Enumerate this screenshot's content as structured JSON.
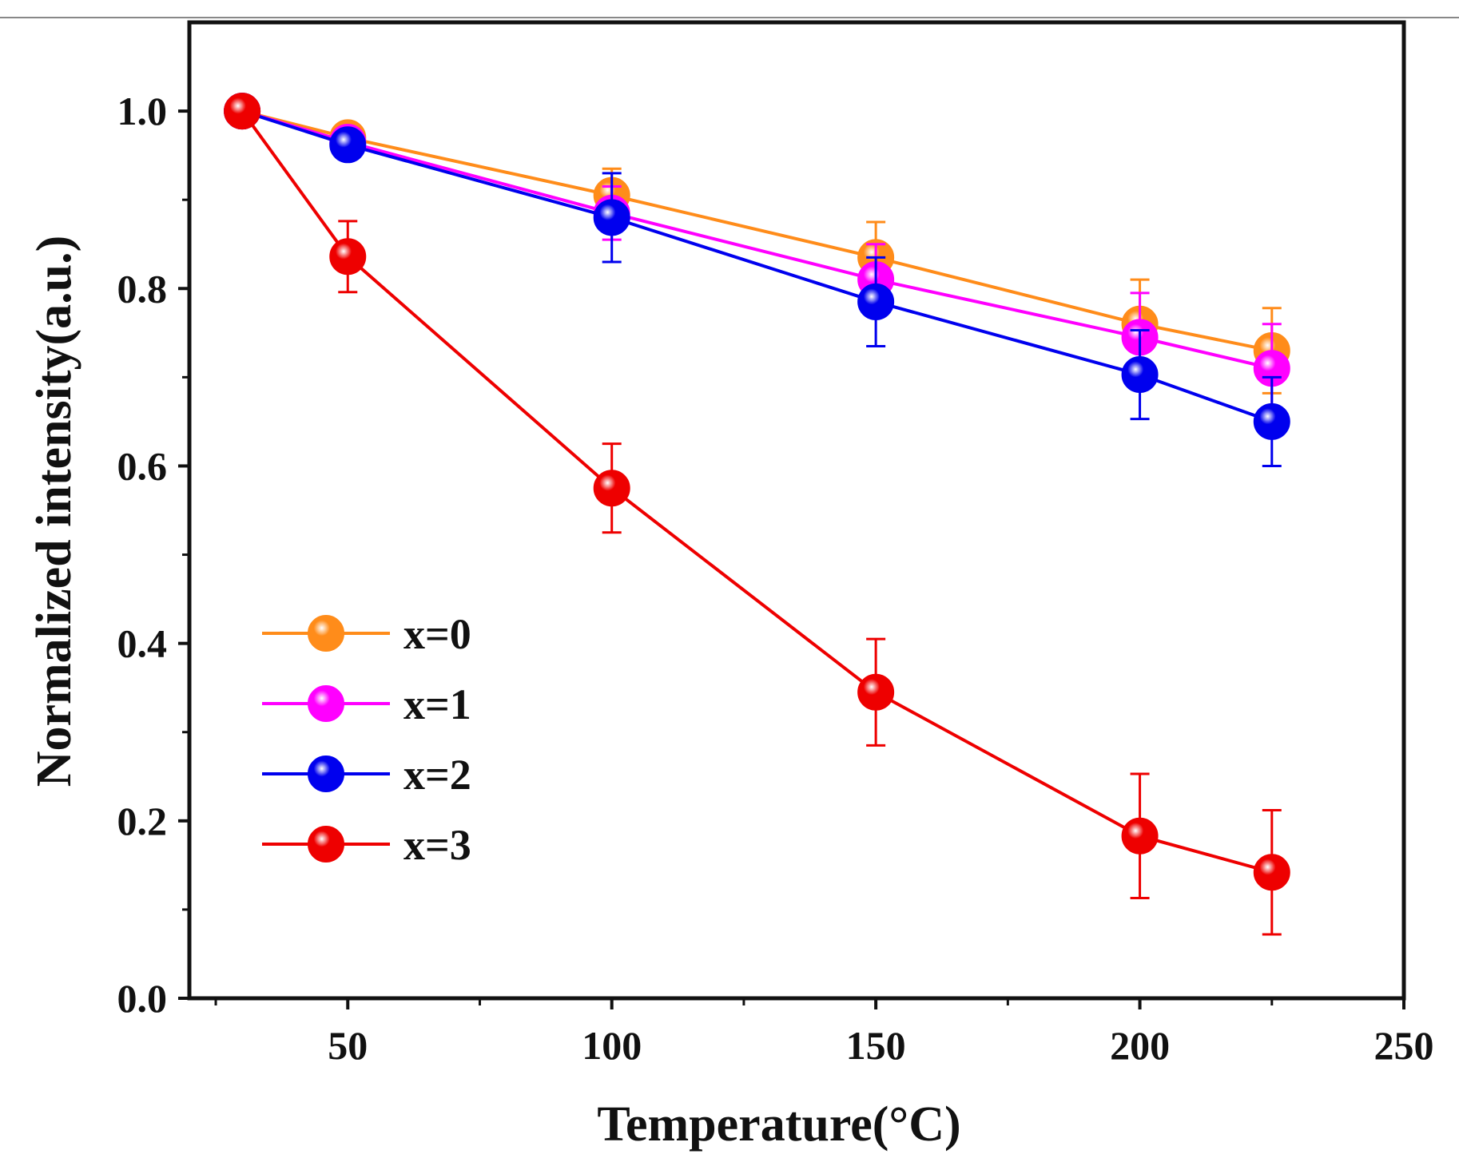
{
  "chart_data": {
    "type": "line",
    "xlabel": "Temperature(°C)",
    "ylabel": "Normalized intensity(a.u.)",
    "xlim": [
      20,
      250
    ],
    "ylim": [
      0.0,
      1.1
    ],
    "x_ticks": [
      50,
      100,
      150,
      200,
      250
    ],
    "x_tick_labels": [
      "50",
      "100",
      "150",
      "200",
      "250"
    ],
    "x_minor_ticks": [
      25,
      75,
      125,
      175,
      225
    ],
    "y_ticks": [
      0.0,
      0.2,
      0.4,
      0.6,
      0.8,
      1.0
    ],
    "y_tick_labels": [
      "0.0",
      "0.2",
      "0.4",
      "0.6",
      "0.8",
      "1.0"
    ],
    "y_minor_ticks": [
      0.1,
      0.3,
      0.5,
      0.7,
      0.9
    ],
    "x": [
      30,
      50,
      100,
      150,
      200,
      225
    ],
    "legend_position": "center-left",
    "series": [
      {
        "name": "x=0",
        "color": "#ff8c1a",
        "values": [
          1.0,
          0.97,
          0.905,
          0.835,
          0.76,
          0.73
        ],
        "errors": [
          0.0,
          0.01,
          0.03,
          0.04,
          0.05,
          0.048
        ]
      },
      {
        "name": "x=1",
        "color": "#ff00ff",
        "values": [
          1.0,
          0.965,
          0.885,
          0.81,
          0.745,
          0.71
        ],
        "errors": [
          0.0,
          0.01,
          0.03,
          0.04,
          0.05,
          0.05
        ]
      },
      {
        "name": "x=2",
        "color": "#0000ee",
        "values": [
          1.0,
          0.962,
          0.88,
          0.785,
          0.703,
          0.65
        ],
        "errors": [
          0.0,
          0.01,
          0.05,
          0.05,
          0.05,
          0.05
        ]
      },
      {
        "name": "x=3",
        "color": "#ee0000",
        "values": [
          1.0,
          0.836,
          0.575,
          0.345,
          0.183,
          0.142
        ],
        "errors": [
          0.0,
          0.04,
          0.05,
          0.06,
          0.07,
          0.07
        ]
      }
    ]
  }
}
